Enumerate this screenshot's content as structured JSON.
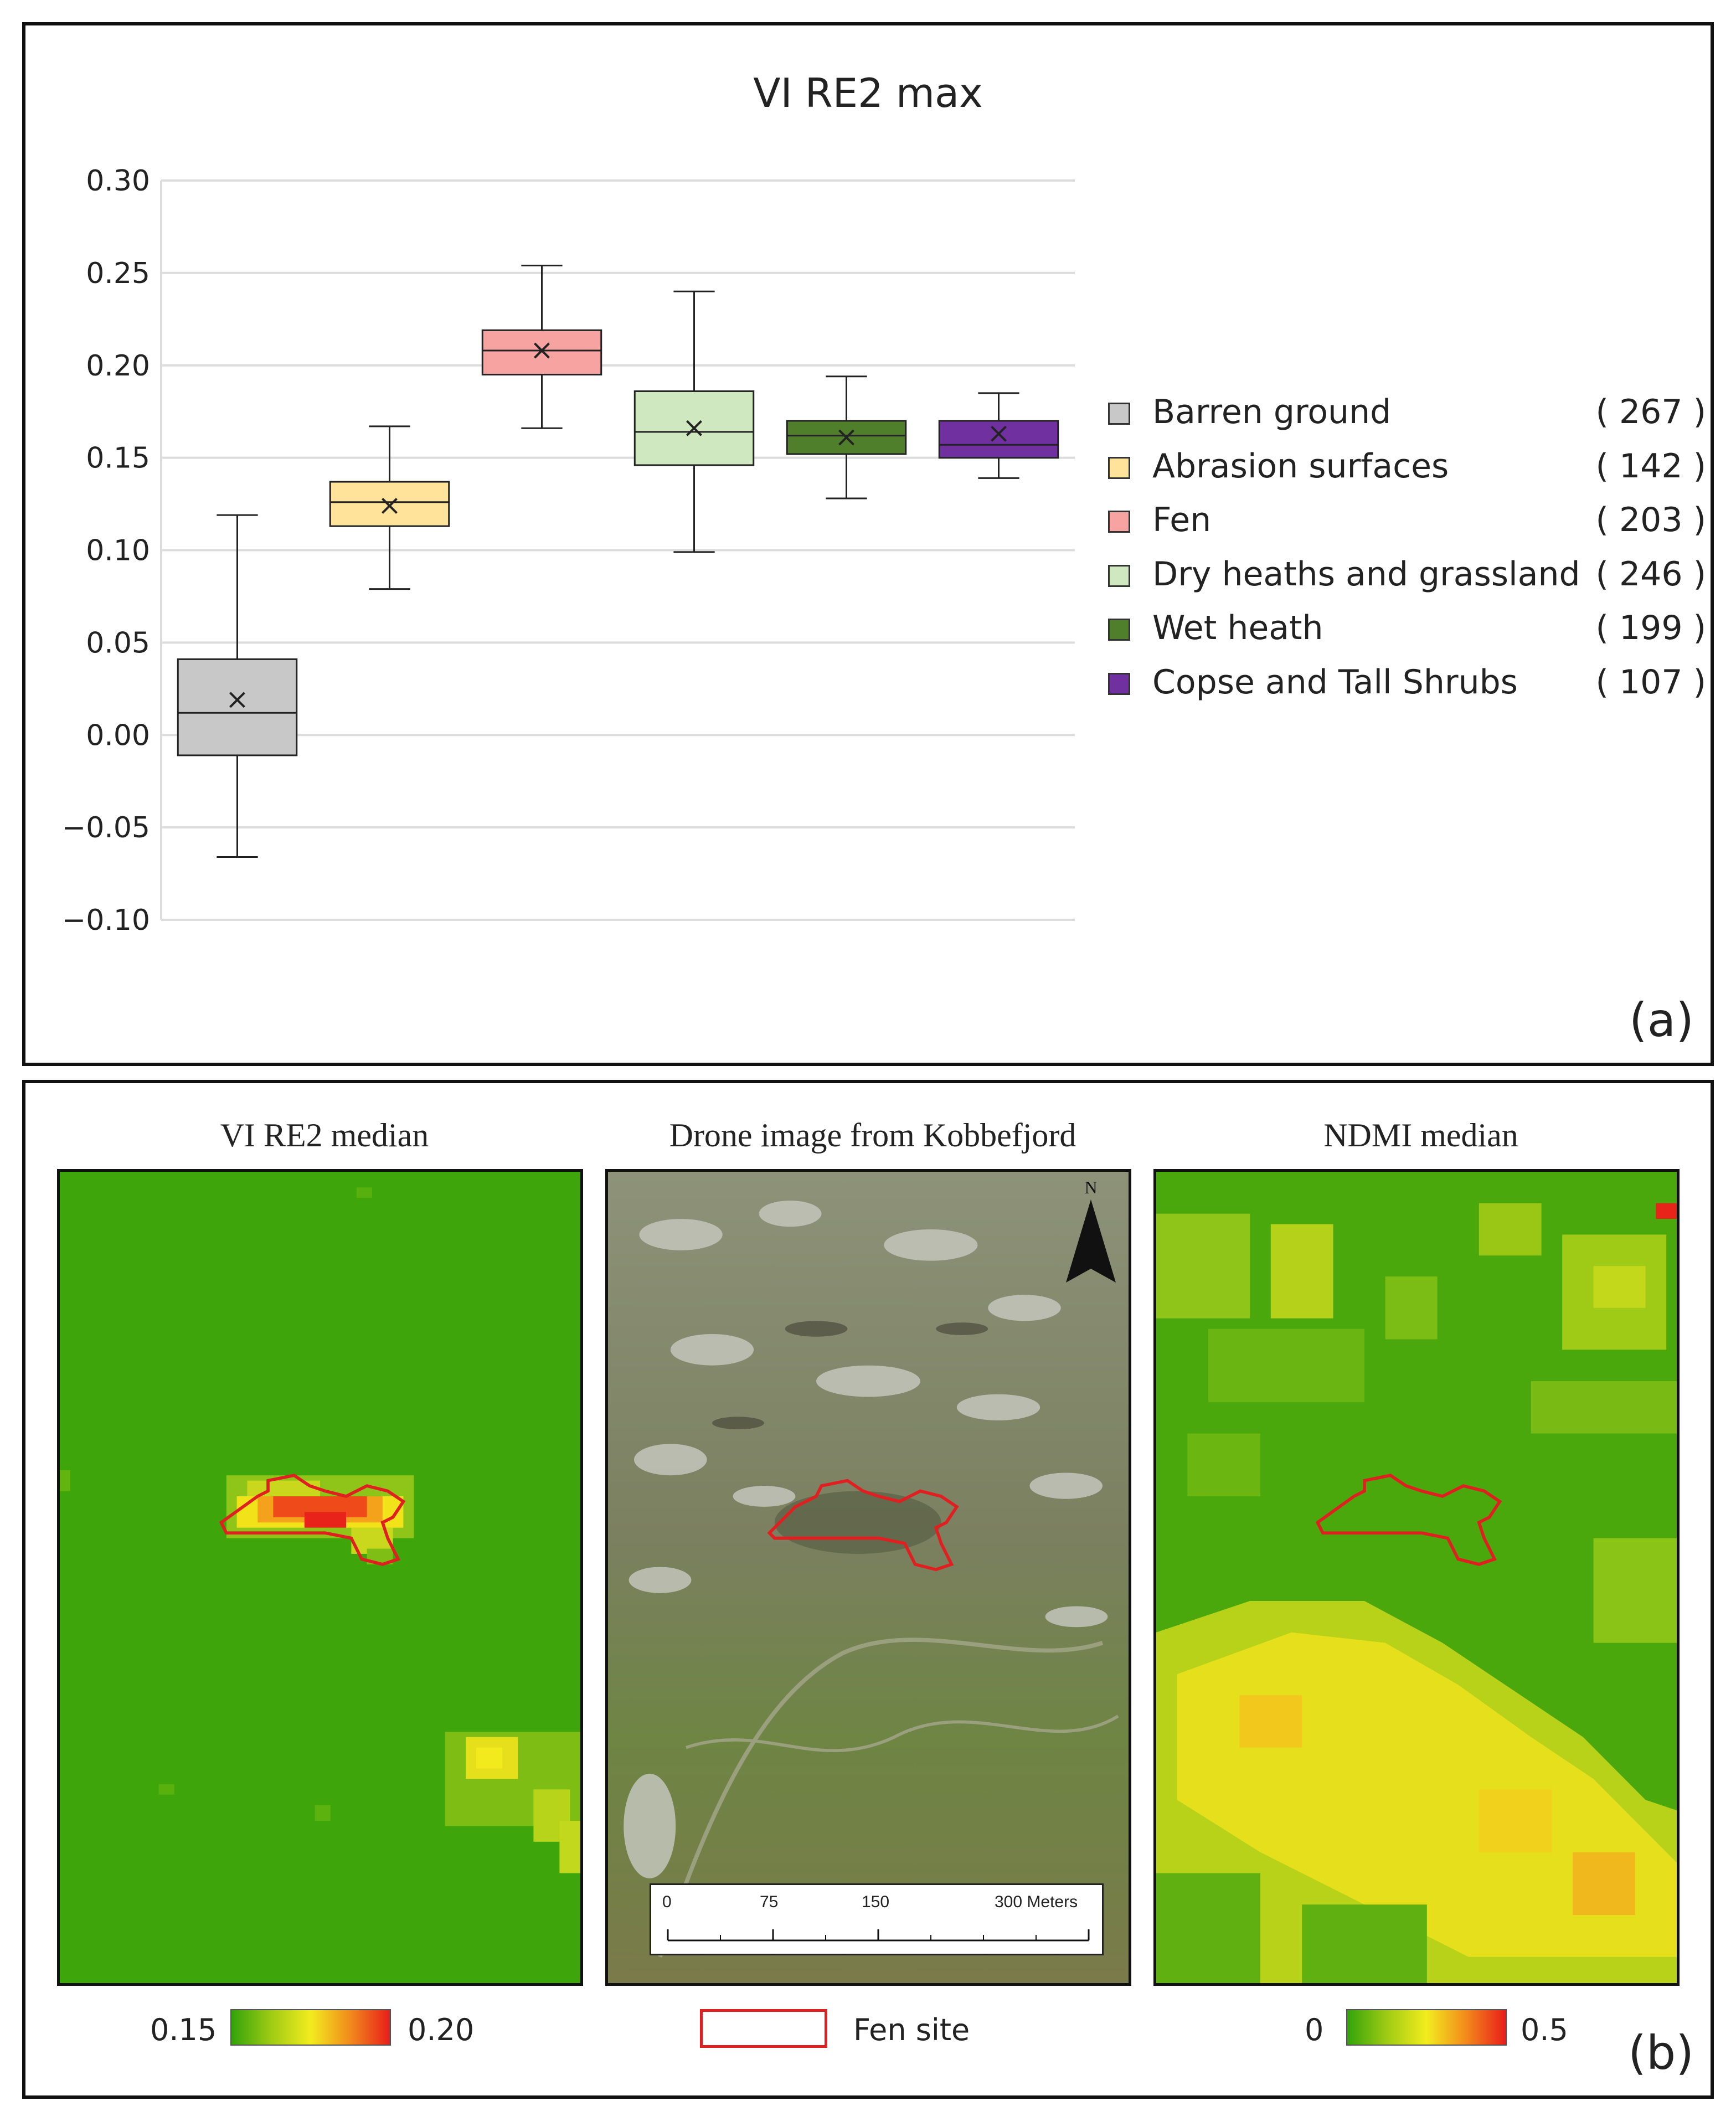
{
  "panel_a": {
    "label": "(a)",
    "chart_data": {
      "type": "box",
      "title": "VI RE2 max",
      "ylim": [
        -0.1,
        0.3
      ],
      "yticks": [
        "0.30",
        "0.25",
        "0.20",
        "0.15",
        "0.10",
        "0.05",
        "0.00",
        "−0.05",
        "−0.10"
      ],
      "ytick_values": [
        0.3,
        0.25,
        0.2,
        0.15,
        0.1,
        0.05,
        0.0,
        -0.05,
        -0.1
      ],
      "grid": true,
      "legend_position": "right",
      "series": [
        {
          "name": "Barren ground",
          "count": "( 267 )",
          "color": "#c8c8c8",
          "min": -0.066,
          "q1": -0.011,
          "median": 0.012,
          "q3": 0.041,
          "max": 0.119,
          "mean": 0.019
        },
        {
          "name": "Abrasion surfaces",
          "count": "( 142 )",
          "color": "#ffe39a",
          "min": 0.079,
          "q1": 0.113,
          "median": 0.126,
          "q3": 0.137,
          "max": 0.167,
          "mean": 0.124
        },
        {
          "name": "Fen",
          "count": "( 203 )",
          "color": "#f7a3a1",
          "min": 0.166,
          "q1": 0.195,
          "median": 0.208,
          "q3": 0.219,
          "max": 0.254,
          "mean": 0.208
        },
        {
          "name": "Dry heaths and grassland",
          "count": "( 246 )",
          "color": "#cfe8c0",
          "min": 0.099,
          "q1": 0.146,
          "median": 0.164,
          "q3": 0.186,
          "max": 0.24,
          "mean": 0.166
        },
        {
          "name": "Wet heath",
          "count": "( 199 )",
          "color": "#4f7f2b",
          "min": 0.128,
          "q1": 0.152,
          "median": 0.162,
          "q3": 0.17,
          "max": 0.194,
          "mean": 0.161
        },
        {
          "name": "Copse and Tall Shrubs",
          "count": "( 107 )",
          "color": "#7030a0",
          "min": 0.139,
          "q1": 0.15,
          "median": 0.157,
          "q3": 0.17,
          "max": 0.185,
          "mean": 0.163
        }
      ]
    }
  },
  "panel_b": {
    "label": "(b)",
    "maps": [
      {
        "title": "VI RE2 median"
      },
      {
        "title": "Drone image from Kobbefjord"
      },
      {
        "title": "NDMI median"
      }
    ],
    "colorbar_left": {
      "min_label": "0.15",
      "max_label": "0.20",
      "min": 0.15,
      "max": 0.2
    },
    "colorbar_right": {
      "min_label": "0",
      "max_label": "0.5",
      "min": 0,
      "max": 0.5
    },
    "fen_legend_label": "Fen site",
    "fen_color": "#e02020",
    "north_label": "N",
    "scalebar_ticks": [
      "0",
      "75",
      "150",
      "300 Meters"
    ],
    "scalebar_values": [
      0,
      75,
      150,
      300
    ]
  }
}
